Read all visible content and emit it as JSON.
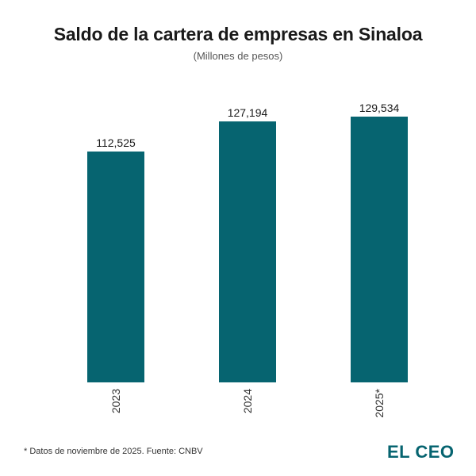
{
  "chart_data": {
    "type": "bar",
    "title": "Saldo de la cartera de empresas en Sinaloa",
    "subtitle": "(Millones de pesos)",
    "categories": [
      "2023",
      "2024",
      "2025*"
    ],
    "values": [
      112525,
      127194,
      129534
    ],
    "value_labels": [
      "112,525",
      "127,194",
      "129,534"
    ],
    "xlabel": "",
    "ylabel": "",
    "ylim": [
      0,
      140000
    ],
    "grid": false,
    "legend": "none",
    "bar_color": "#066470"
  },
  "footnote": "* Datos de noviembre de 2025. Fuente: CNBV",
  "logo": {
    "text": "EL CEO",
    "color": "#066470"
  }
}
